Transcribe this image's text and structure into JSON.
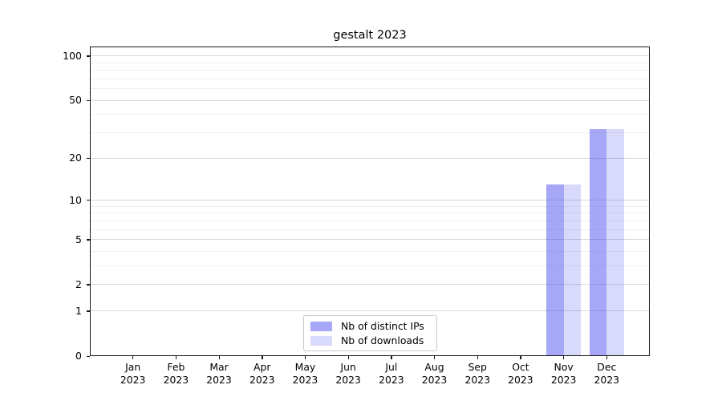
{
  "chart_data": {
    "type": "bar",
    "title": "gestalt 2023",
    "categories": [
      {
        "month": "Jan",
        "year": "2023"
      },
      {
        "month": "Feb",
        "year": "2023"
      },
      {
        "month": "Mar",
        "year": "2023"
      },
      {
        "month": "Apr",
        "year": "2023"
      },
      {
        "month": "May",
        "year": "2023"
      },
      {
        "month": "Jun",
        "year": "2023"
      },
      {
        "month": "Jul",
        "year": "2023"
      },
      {
        "month": "Aug",
        "year": "2023"
      },
      {
        "month": "Sep",
        "year": "2023"
      },
      {
        "month": "Oct",
        "year": "2023"
      },
      {
        "month": "Nov",
        "year": "2023"
      },
      {
        "month": "Dec",
        "year": "2023"
      }
    ],
    "series": [
      {
        "name": "Nb of distinct IPs",
        "color": "rgba(80,80,240,0.5)",
        "values": [
          0,
          0,
          0,
          0,
          0,
          0,
          0,
          0,
          0,
          0,
          13,
          32
        ]
      },
      {
        "name": "Nb of downloads",
        "color": "rgba(80,80,240,0.22)",
        "values": [
          0,
          0,
          0,
          0,
          0,
          0,
          0,
          0,
          0,
          0,
          13,
          32
        ]
      }
    ],
    "yscale": "log1p",
    "ylim": [
      0,
      116
    ],
    "ytick_labels": [
      "0",
      "1",
      "2",
      "5",
      "10",
      "20",
      "50",
      "100"
    ],
    "ytick_values": [
      0,
      1,
      2,
      5,
      10,
      20,
      50,
      100
    ],
    "minor_ytick_values": [
      3,
      4,
      6,
      7,
      8,
      9,
      30,
      40,
      60,
      70,
      80,
      90
    ],
    "xlim_units": [
      -1,
      12
    ],
    "bar_width_units": 0.4,
    "grid": "horizontal",
    "legend_position": "lower center"
  },
  "colors": {
    "spine": "#161616",
    "major_grid": "#d9d9d9",
    "minor_grid": "#f0f0f0",
    "text": "#000000",
    "legend_border": "#c9c9c9"
  }
}
